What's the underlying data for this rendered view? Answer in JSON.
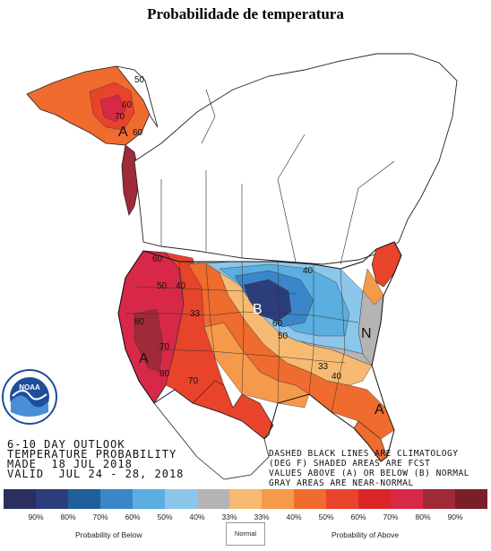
{
  "title": "Probabilidade de temperatura",
  "outlook": {
    "line1": "6-10 DAY OUTLOOK",
    "line2": "TEMPERATURE PROBABILITY",
    "line3": "MADE  18 JUL 2018",
    "line4": "VALID  JUL 24 - 28, 2018"
  },
  "notes": {
    "line1": "DASHED BLACK LINES ARE CLIMATOLOGY",
    "line2": "(DEG F) SHADED AREAS ARE FCST",
    "line3": "VALUES ABOVE (A) OR BELOW (B) NORMAL",
    "line4": "GRAY AREAS ARE NEAR-NORMAL"
  },
  "agency": "NOAA",
  "map_labels": {
    "a_alaska": "A",
    "a_west": "A",
    "a_southeast": "A",
    "b_midwest": "B",
    "n_east": "N",
    "ak50": "50",
    "ak60": "60",
    "ak70": "70",
    "ak60b": "60",
    "w80": "80",
    "w70": "70",
    "w60": "60",
    "w50": "50",
    "w33": "33",
    "w40": "40",
    "sw80": "80",
    "sw70": "70",
    "m60": "60",
    "m50": "50",
    "m40": "40",
    "e33": "33",
    "se40": "40"
  },
  "legend": {
    "colors": [
      "#2a2f5e",
      "#2c3d7c",
      "#1f5f9a",
      "#3a86c8",
      "#5aaee0",
      "#8cc6eb",
      "#b4b4b4",
      "#f6ba72",
      "#f59a4a",
      "#ef6b2e",
      "#e8432b",
      "#dc2426",
      "#d82848",
      "#a02a38",
      "#7a1f2a"
    ],
    "labels": [
      "90%",
      "80%",
      "70%",
      "60%",
      "50%",
      "40%",
      "33%",
      "33%",
      "40%",
      "50%",
      "60%",
      "70%",
      "80%",
      "90%"
    ],
    "below_label": "Probability of Below",
    "normal_label": "Normal",
    "above_label": "Probability of Above"
  }
}
